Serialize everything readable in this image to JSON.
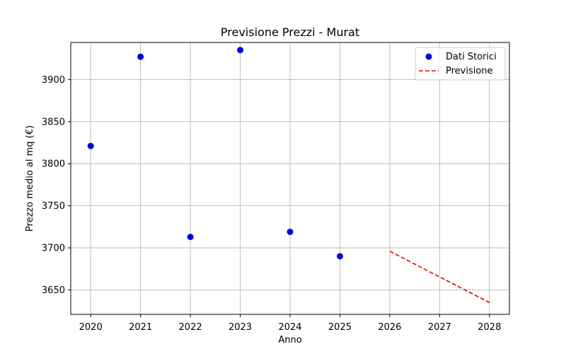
{
  "chart_data": {
    "type": "scatter",
    "title": "Previsione Prezzi - Murat",
    "xlabel": "Anno",
    "ylabel": "Prezzo medio al mq (€)",
    "xlim": [
      2019.6,
      2028.4
    ],
    "ylim": [
      3621,
      3944
    ],
    "x_ticks": [
      2020,
      2021,
      2022,
      2023,
      2024,
      2025,
      2026,
      2027,
      2028
    ],
    "y_ticks": [
      3650,
      3700,
      3750,
      3800,
      3850,
      3900
    ],
    "grid": true,
    "legend_position": "top-right",
    "series": [
      {
        "name": "Dati Storici",
        "kind": "scatter",
        "color": "#0000dd",
        "x": [
          2020,
          2021,
          2022,
          2023,
          2024,
          2025
        ],
        "y": [
          3821,
          3927,
          3713,
          3935,
          3719,
          3690
        ]
      },
      {
        "name": "Previsione",
        "kind": "line",
        "style": "dashed",
        "color": "#ee0000",
        "x": [
          2026,
          2028
        ],
        "y": [
          3696,
          3635
        ]
      }
    ]
  }
}
